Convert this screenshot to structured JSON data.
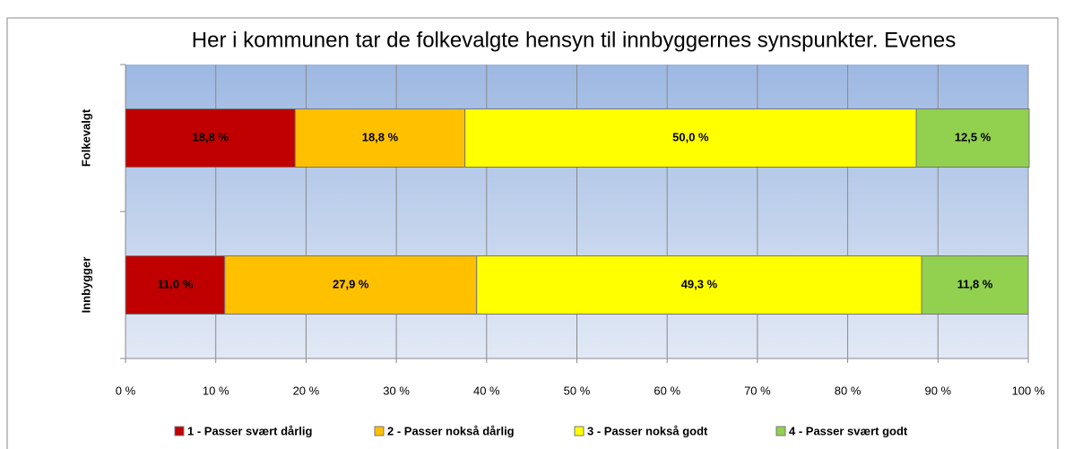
{
  "chart_data": {
    "type": "stacked-barh",
    "title": "Her i kommunen tar de folkevalgte hensyn til innbyggernes synspunkter. Evenes",
    "categories": [
      "Folkevalgt",
      "Innbygger"
    ],
    "series": [
      {
        "name": "1 - Passer svært dårlig",
        "color": "#c00000",
        "values": [
          18.8,
          11.0
        ],
        "value_labels": [
          "18,8 %",
          "11,0 %"
        ]
      },
      {
        "name": "2 - Passer nokså dårlig",
        "color": "#ffc000",
        "values": [
          18.8,
          27.9
        ],
        "value_labels": [
          "18,8 %",
          "27,9 %"
        ]
      },
      {
        "name": "3 - Passer nokså godt",
        "color": "#ffff00",
        "values": [
          50.0,
          49.3
        ],
        "value_labels": [
          "50,0 %",
          "49,3 %"
        ]
      },
      {
        "name": "4 - Passer svært godt",
        "color": "#92d050",
        "values": [
          12.5,
          11.8
        ],
        "value_labels": [
          "12,5 %",
          "11,8 %"
        ]
      }
    ],
    "xlim": [
      0,
      100
    ],
    "xticks": [
      {
        "value": 0,
        "label": "0 %"
      },
      {
        "value": 10,
        "label": "10 %"
      },
      {
        "value": 20,
        "label": "20 %"
      },
      {
        "value": 30,
        "label": "30 %"
      },
      {
        "value": 40,
        "label": "40 %"
      },
      {
        "value": 50,
        "label": "50 %"
      },
      {
        "value": 60,
        "label": "60 %"
      },
      {
        "value": 70,
        "label": "70 %"
      },
      {
        "value": 80,
        "label": "80 %"
      },
      {
        "value": 90,
        "label": "90 %"
      },
      {
        "value": 100,
        "label": "100 %"
      }
    ],
    "grid": true,
    "legend": "bottom"
  }
}
